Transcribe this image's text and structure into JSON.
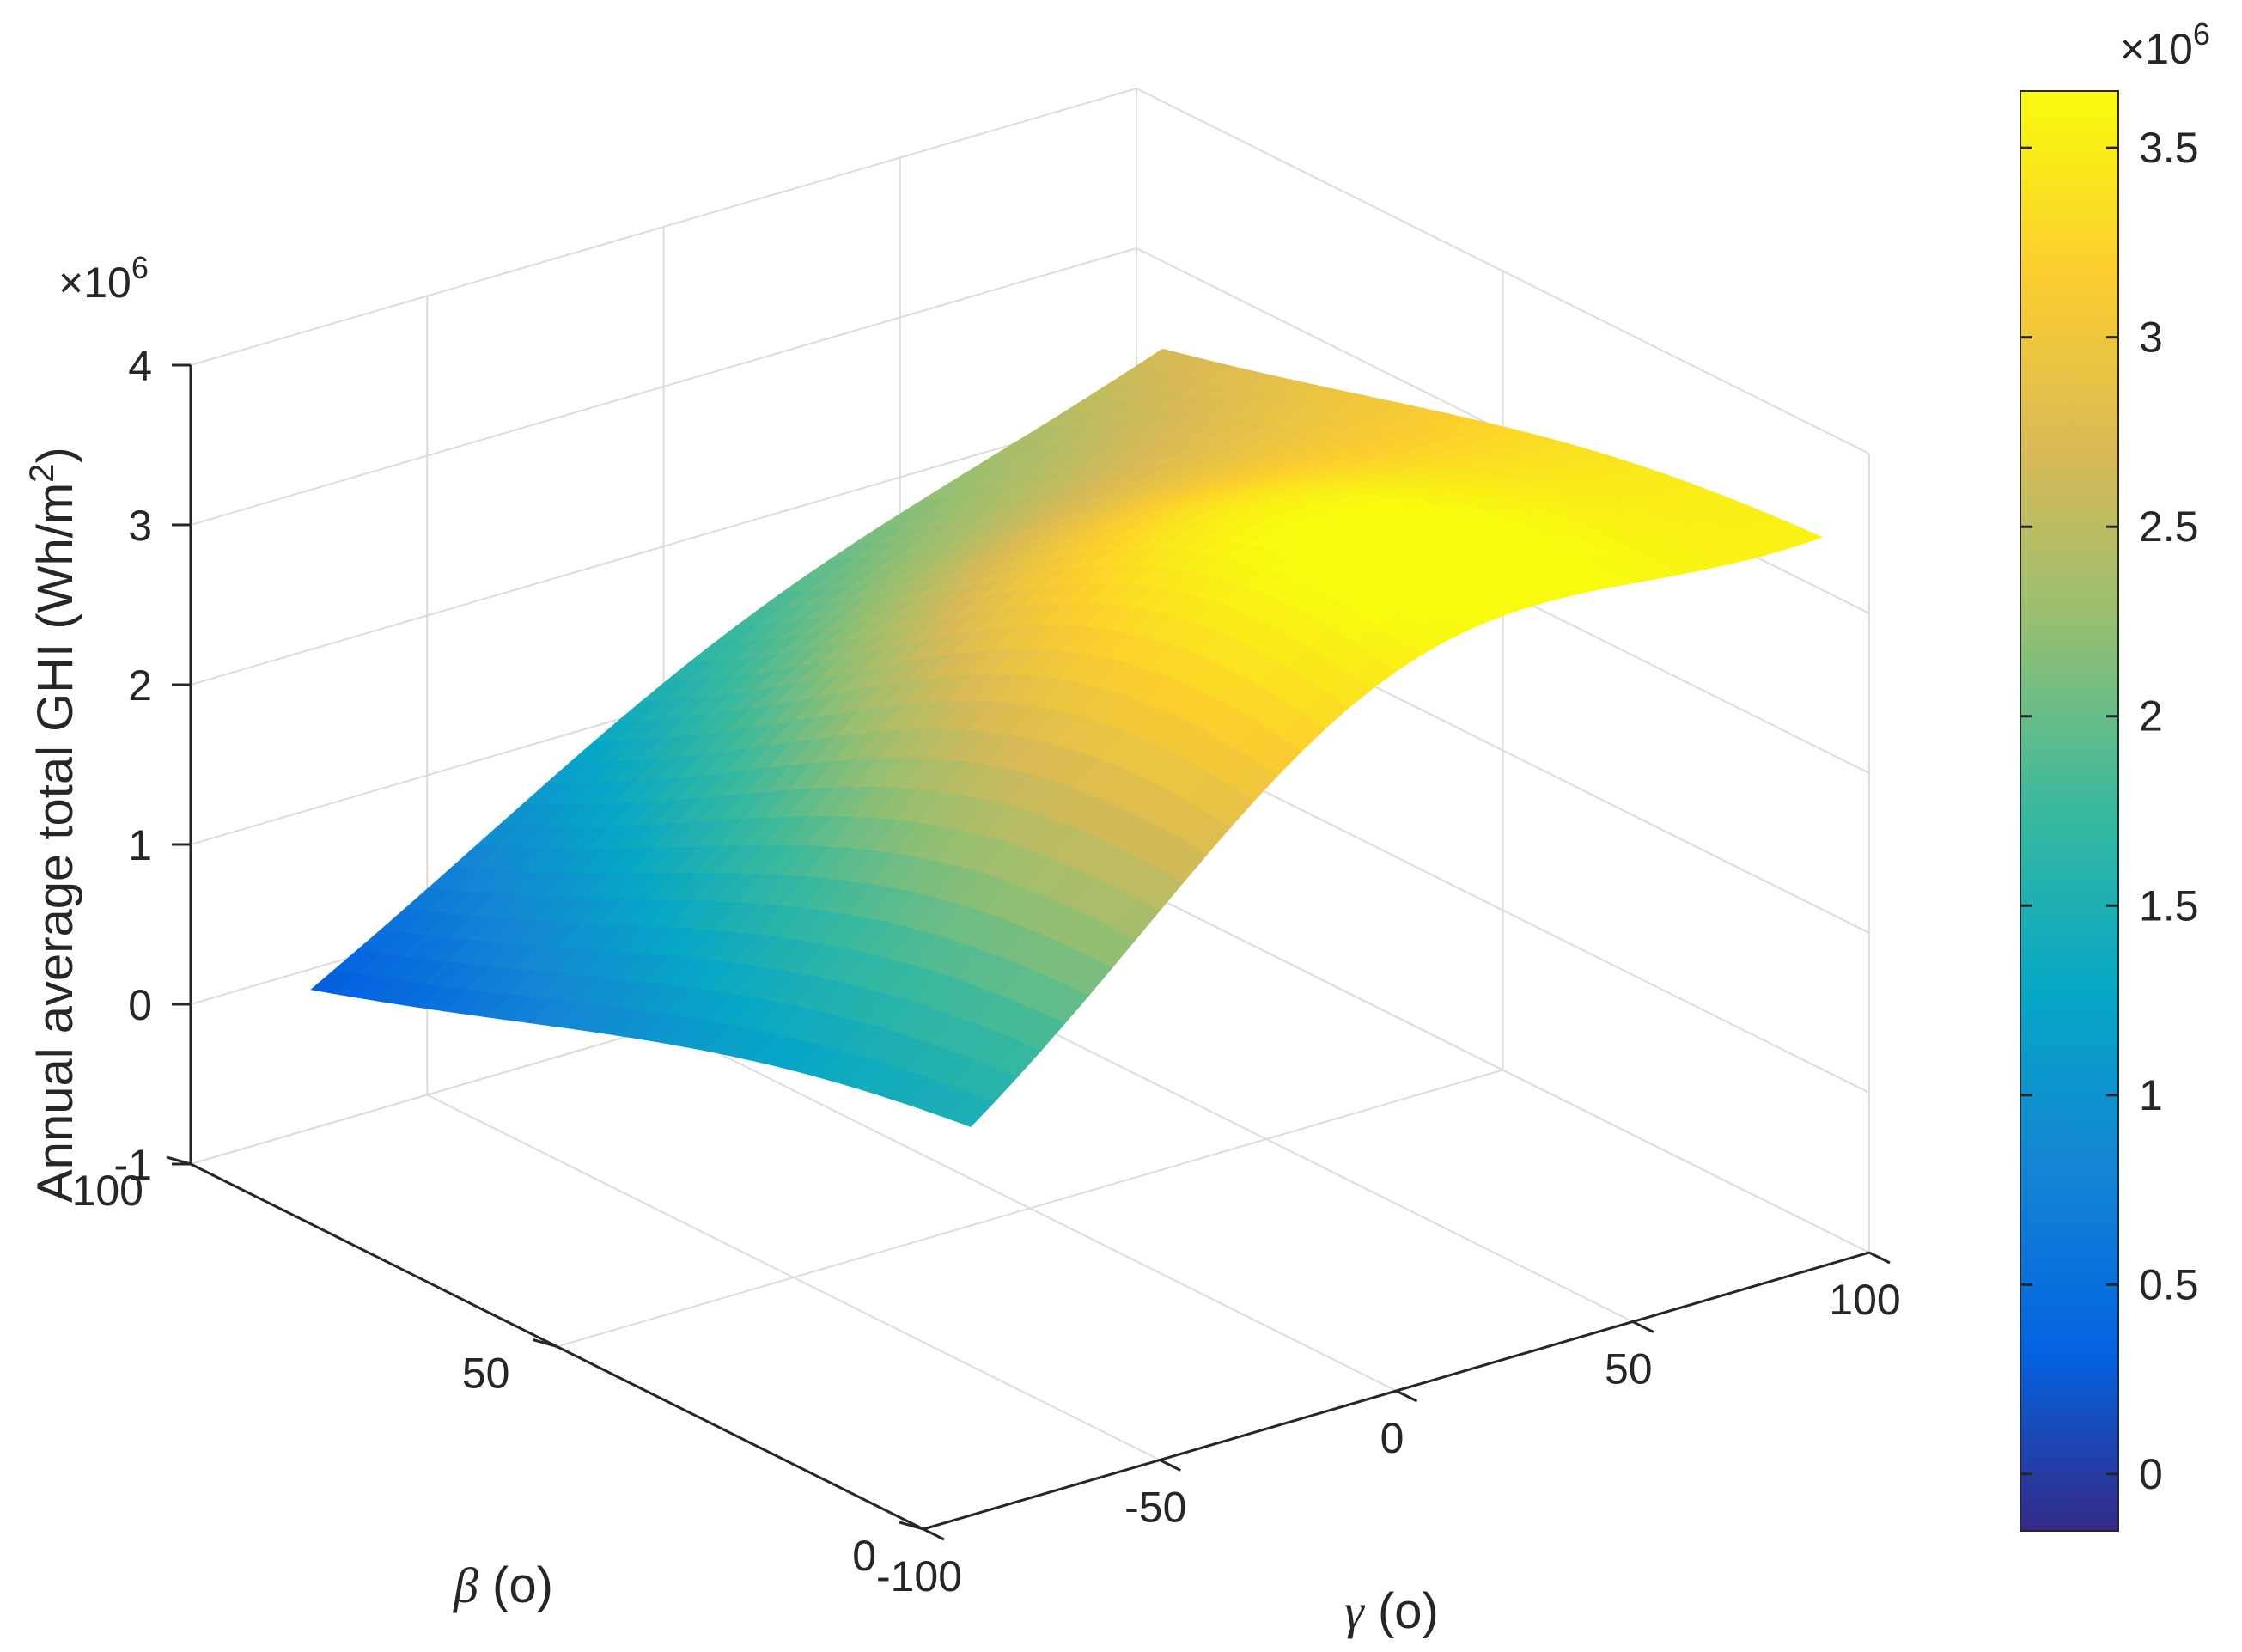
{
  "chart_data": {
    "type": "surface",
    "x": {
      "symbol": "γ",
      "label_suffix": " (o)",
      "range": [
        -100,
        100
      ],
      "ticks": [
        "-100",
        "-50",
        "0",
        "50",
        "100"
      ]
    },
    "y": {
      "symbol": "β",
      "label_suffix": " (o)",
      "range": [
        0,
        100
      ],
      "ticks": [
        "0",
        "50",
        "100"
      ]
    },
    "z": {
      "label": "Annual average total GHI (Wh/m",
      "label_sup": "2",
      "label_end": ")",
      "range": [
        -1,
        4
      ],
      "ticks": [
        "-1",
        "0",
        "1",
        "2",
        "3",
        "4"
      ],
      "exponent_label": "×10",
      "exponent": "6",
      "scale": 1000000
    },
    "surface": {
      "gamma_range": [
        -90,
        90
      ],
      "beta_range": [
        0,
        90
      ],
      "peak_value": 3550000,
      "peak_at": {
        "gamma": 0,
        "beta": 23
      },
      "corner_values": {
        "gamma-90_beta0": 1120000,
        "gamma90_beta0": 3250000,
        "gamma-90_beta90": 150000,
        "gamma90_beta90": 2600000
      },
      "note_grid": "shaded surface over beta 0–90 and gamma -90–90"
    },
    "colorbar": {
      "range": [
        -0.15,
        3.65
      ],
      "ticks": [
        "0",
        "0.5",
        "1",
        "1.5",
        "2",
        "2.5",
        "3",
        "3.5"
      ],
      "exponent_label": "×10",
      "exponent": "6",
      "colormap": "parula",
      "colors": [
        "#352a87",
        "#0363e1",
        "#1485d4",
        "#06a7c6",
        "#38b99e",
        "#92bf73",
        "#d9ba56",
        "#fcce2e",
        "#f9fb0e"
      ]
    },
    "grid": true,
    "box": false
  }
}
